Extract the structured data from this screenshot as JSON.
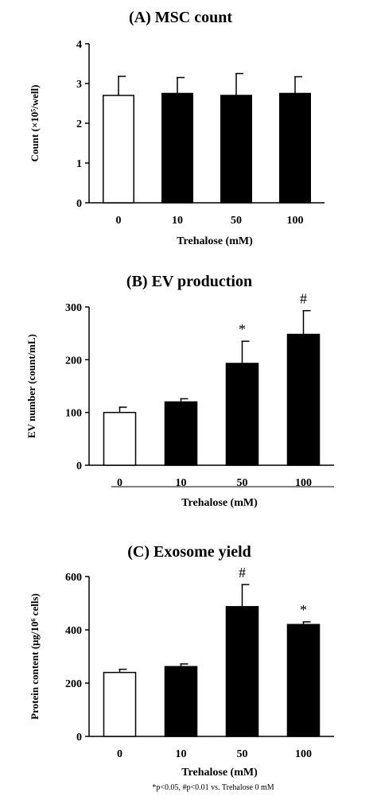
{
  "footnote": "*p<0.05, #p<0.01 vs. Trehalose 0 mM",
  "colors": {
    "control_fill": "#ffffff",
    "treatment_fill": "#000000",
    "axis": "#000000"
  },
  "chart_data": [
    {
      "type": "bar",
      "title": "(A) MSC count",
      "xlabel": "Trehalose (mM)",
      "ylabel": "Count (×10⁵/well)",
      "categories": [
        "0",
        "10",
        "50",
        "100"
      ],
      "values": [
        2.7,
        2.75,
        2.7,
        2.75
      ],
      "errors": [
        0.48,
        0.4,
        0.55,
        0.42
      ],
      "significance": [
        "",
        "",
        "",
        ""
      ],
      "ylim": [
        0,
        4
      ],
      "yticks": [
        "0",
        "1",
        "2",
        "3",
        "4"
      ],
      "grid": false,
      "bar_colors": [
        "#ffffff",
        "#000000",
        "#000000",
        "#000000"
      ]
    },
    {
      "type": "bar",
      "title": "(B) EV production",
      "xlabel": "Trehalose (mM)",
      "ylabel": "EV number (count/mL)",
      "categories": [
        "0",
        "10",
        "50",
        "100"
      ],
      "values": [
        100,
        120,
        193,
        248
      ],
      "errors": [
        10,
        6,
        42,
        45
      ],
      "significance": [
        "",
        "",
        "*",
        "#"
      ],
      "ylim": [
        0,
        300
      ],
      "yticks": [
        "0",
        "100",
        "200",
        "300"
      ],
      "grid": false,
      "bar_colors": [
        "#ffffff",
        "#000000",
        "#000000",
        "#000000"
      ]
    },
    {
      "type": "bar",
      "title": "(C) Exosome yield",
      "xlabel": "Trehalose (mM)",
      "ylabel": "Protein content (μg/10⁶ cells)",
      "categories": [
        "0",
        "10",
        "50",
        "100"
      ],
      "values": [
        240,
        262,
        487,
        420
      ],
      "errors": [
        12,
        10,
        83,
        10
      ],
      "significance": [
        "",
        "",
        "#",
        "*"
      ],
      "ylim": [
        0,
        600
      ],
      "yticks": [
        "0",
        "200",
        "400",
        "600"
      ],
      "grid": false,
      "bar_colors": [
        "#ffffff",
        "#000000",
        "#000000",
        "#000000"
      ]
    }
  ]
}
